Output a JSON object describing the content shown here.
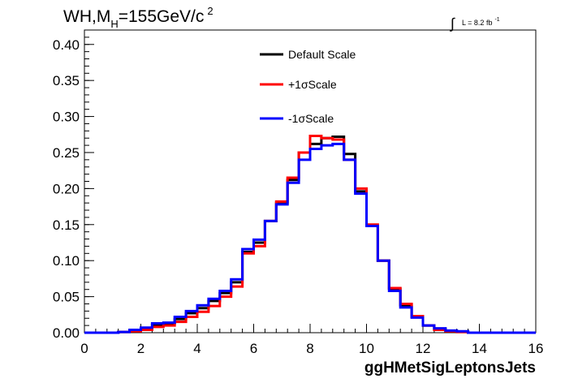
{
  "chart_data": {
    "type": "line",
    "step": true,
    "title_parts": {
      "base": "WH,M",
      "subscript": "H",
      "middle": "=155GeV/c",
      "superscript": "2"
    },
    "luminosity": {
      "integral": "∫",
      "text": "L = 8.2 fb",
      "superscript": "-1"
    },
    "xlabel": "ggHMetSigLeptonsJets",
    "ylabel": "",
    "xlim": [
      0,
      16
    ],
    "ylim": [
      0,
      0.42
    ],
    "grid": false,
    "legend_position": "top-center",
    "x_ticks": [
      "0",
      "2",
      "4",
      "6",
      "8",
      "10",
      "12",
      "14",
      "16"
    ],
    "y_ticks": [
      "0.00",
      "0.05",
      "0.10",
      "0.15",
      "0.20",
      "0.25",
      "0.30",
      "0.35",
      "0.40"
    ],
    "bin_edges": [
      0,
      0.4,
      0.8,
      1.2,
      1.6,
      2.0,
      2.4,
      2.8,
      3.2,
      3.6,
      4.0,
      4.4,
      4.8,
      5.2,
      5.6,
      6.0,
      6.4,
      6.8,
      7.2,
      7.6,
      8.0,
      8.4,
      8.8,
      9.2,
      9.6,
      10.0,
      10.4,
      10.8,
      11.2,
      11.6,
      12.0,
      12.4,
      12.8,
      13.2,
      13.6,
      14.0,
      14.4,
      14.8,
      15.2,
      15.6,
      16.0
    ],
    "series": [
      {
        "name": "Default Scale",
        "color": "#000000",
        "values": [
          0,
          0,
          0,
          0.001,
          0.003,
          0.006,
          0.011,
          0.013,
          0.019,
          0.027,
          0.034,
          0.044,
          0.055,
          0.07,
          0.112,
          0.125,
          0.155,
          0.18,
          0.212,
          0.25,
          0.262,
          0.27,
          0.272,
          0.248,
          0.196,
          0.148,
          0.1,
          0.061,
          0.038,
          0.022,
          0.01,
          0.005,
          0.002,
          0.001,
          0,
          0,
          0,
          0,
          0,
          0
        ]
      },
      {
        "name": "+1σScale",
        "color": "#ff0000",
        "values": [
          0,
          0,
          0,
          0.001,
          0.002,
          0.004,
          0.008,
          0.01,
          0.015,
          0.022,
          0.029,
          0.037,
          0.05,
          0.064,
          0.11,
          0.12,
          0.155,
          0.182,
          0.215,
          0.25,
          0.273,
          0.27,
          0.268,
          0.24,
          0.2,
          0.15,
          0.1,
          0.062,
          0.04,
          0.023,
          0.01,
          0.004,
          0.002,
          0.001,
          0,
          0,
          0,
          0,
          0,
          0
        ]
      },
      {
        "name": "-1σScale",
        "color": "#0000ff",
        "values": [
          0,
          0,
          0,
          0.001,
          0.004,
          0.007,
          0.013,
          0.014,
          0.022,
          0.03,
          0.038,
          0.047,
          0.058,
          0.074,
          0.116,
          0.129,
          0.155,
          0.178,
          0.208,
          0.24,
          0.255,
          0.26,
          0.262,
          0.24,
          0.193,
          0.148,
          0.1,
          0.058,
          0.035,
          0.021,
          0.01,
          0.006,
          0.003,
          0.002,
          0,
          0,
          0,
          0,
          0,
          0
        ]
      }
    ]
  }
}
